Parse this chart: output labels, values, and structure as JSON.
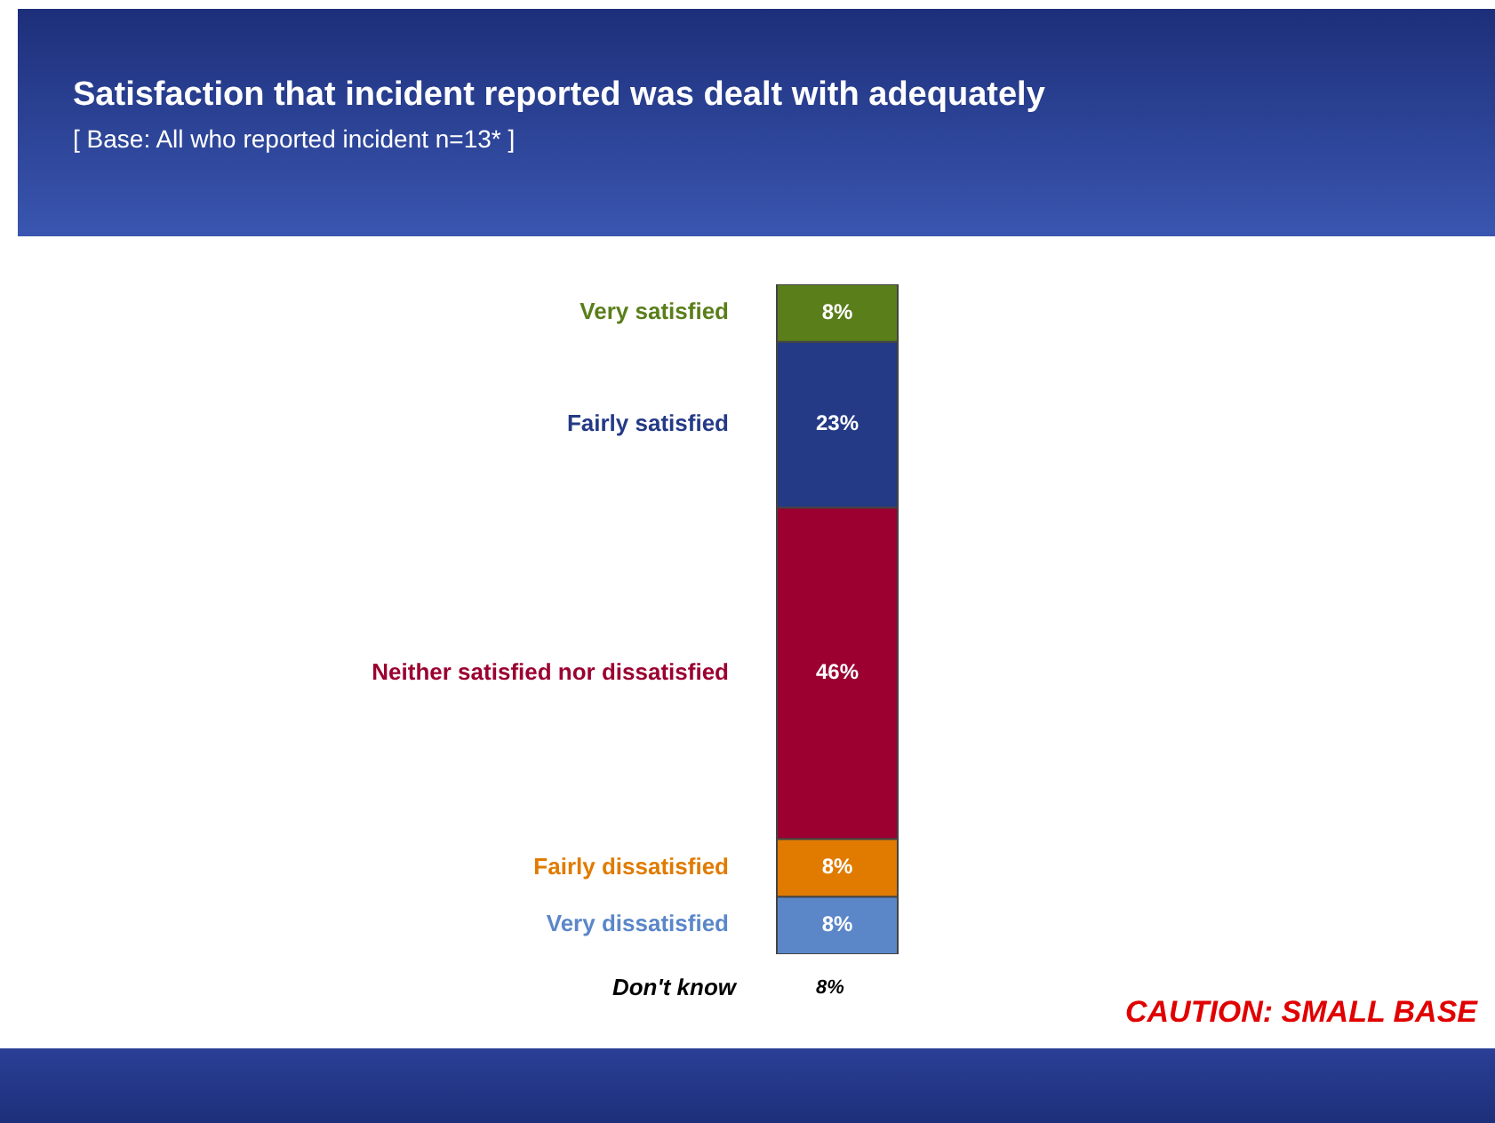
{
  "chart_data": {
    "type": "bar",
    "stacked": true,
    "title": "Satisfaction that incident reported was dealt with adequately",
    "subtitle": "[ Base: All who reported incident n=13* ]",
    "categories": [
      null
    ],
    "series": [
      {
        "name": "Very dissatisfied",
        "color": "#5b87c9",
        "values": [
          8
        ],
        "value_labels": [
          "8%"
        ]
      },
      {
        "name": "Fairly dissatisfied",
        "color": "#e07b00",
        "values": [
          8
        ],
        "value_labels": [
          "8%"
        ]
      },
      {
        "name": "Neither satisfied nor dissatisfied",
        "color": "#9b0030",
        "values": [
          46
        ],
        "value_labels": [
          "46%"
        ]
      },
      {
        "name": "Fairly satisfied",
        "color": "#243a86",
        "values": [
          23
        ],
        "value_labels": [
          "23%"
        ]
      },
      {
        "name": "Very satisfied",
        "color": "#5a7e1a",
        "values": [
          8
        ],
        "value_labels": [
          "8%"
        ]
      }
    ],
    "annotations": [
      "Don't know",
      "8%",
      "CAUTION: SMALL BASE"
    ]
  }
}
